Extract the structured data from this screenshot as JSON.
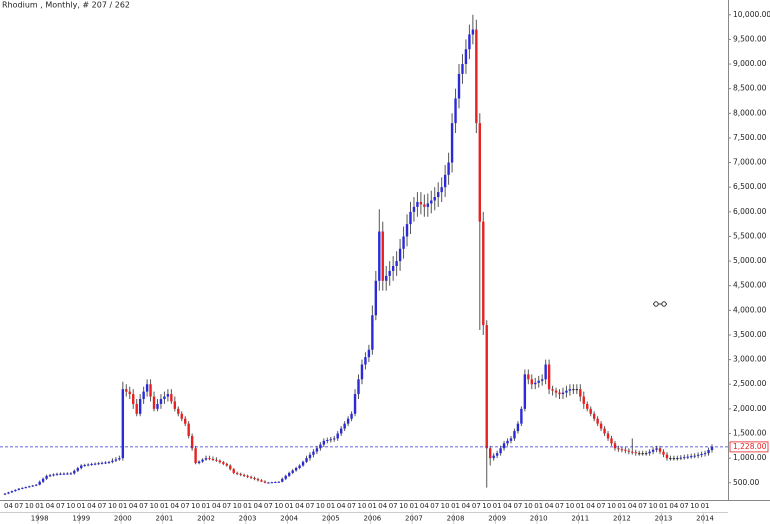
{
  "chart_data": {
    "type": "candlestick",
    "title": "Rhodium , Monthly, # 207 / 262",
    "up_color": "#2a2ad8",
    "down_color": "#e82020",
    "wick_color": "#555555",
    "ylim": [
      150,
      10300
    ],
    "yticks": [
      {
        "value": 500,
        "label": "500.00"
      },
      {
        "value": 1000,
        "label": "1,000.00"
      },
      {
        "value": 1500,
        "label": "1,500.00"
      },
      {
        "value": 2000,
        "label": "2,000.00"
      },
      {
        "value": 2500,
        "label": "2,500.00"
      },
      {
        "value": 3000,
        "label": "3,000.00"
      },
      {
        "value": 3500,
        "label": "3,500.00"
      },
      {
        "value": 4000,
        "label": "4,000.00"
      },
      {
        "value": 4500,
        "label": "4,500.00"
      },
      {
        "value": 5000,
        "label": "5,000.00"
      },
      {
        "value": 5500,
        "label": "5,500.00"
      },
      {
        "value": 6000,
        "label": "6,000.00"
      },
      {
        "value": 6500,
        "label": "6,500.00"
      },
      {
        "value": 7000,
        "label": "7,000.00"
      },
      {
        "value": 7500,
        "label": "7,500.00"
      },
      {
        "value": 8000,
        "label": "8,000.00"
      },
      {
        "value": 8500,
        "label": "8,500.00"
      },
      {
        "value": 9000,
        "label": "9,000.00"
      },
      {
        "value": 9500,
        "label": "9,500.00"
      },
      {
        "value": 10000,
        "label": "10,000.00"
      }
    ],
    "last_price": {
      "value": 1228,
      "label": "1,228.00"
    },
    "years": [
      "1998",
      "1999",
      "2000",
      "2001",
      "2002",
      "2003",
      "2004",
      "2005",
      "2006",
      "2007",
      "2008",
      "2009",
      "2010",
      "2011",
      "2012",
      "2013",
      "2014"
    ],
    "categories": [
      null,
      "04",
      null,
      null,
      "07",
      null,
      null,
      "10",
      null,
      null,
      "01",
      null,
      null,
      "04",
      null,
      null,
      "07",
      null,
      null,
      "10",
      null,
      null,
      "01",
      null,
      null,
      "04",
      null,
      null,
      "07",
      null,
      null,
      "10",
      null,
      null,
      "01",
      null,
      null,
      "04",
      null,
      null,
      "07",
      null,
      null,
      "10",
      null,
      null,
      "01",
      null,
      null,
      "04",
      null,
      null,
      "07",
      null,
      null,
      "10",
      null,
      null,
      "01",
      null,
      null,
      "04",
      null,
      null,
      "07",
      null,
      null,
      "10",
      null,
      null,
      "01",
      null,
      null,
      "04",
      null,
      null,
      "07",
      null,
      null,
      "10",
      null,
      null,
      "01",
      null,
      null,
      "04",
      null,
      null,
      "07",
      null,
      null,
      "10",
      null,
      null,
      "01",
      null,
      null,
      "04",
      null,
      null,
      "07",
      null,
      null,
      "10",
      null,
      null,
      "01",
      null,
      null,
      "04",
      null,
      null,
      "07",
      null,
      null,
      "10",
      null,
      null,
      "01",
      null,
      null,
      "04",
      null,
      null,
      "07",
      null,
      null,
      "10",
      null,
      null,
      "01",
      null,
      null,
      "04",
      null,
      null,
      "07",
      null,
      null,
      "10",
      null,
      null,
      "01",
      null,
      null,
      "04",
      null,
      null,
      "07",
      null,
      null,
      "10",
      null,
      null,
      "01",
      null,
      null,
      "04",
      null,
      null,
      "07",
      null,
      null,
      "10",
      null,
      null,
      "01",
      null,
      null,
      "04",
      null,
      null,
      "07",
      null,
      null,
      "10",
      null,
      null,
      "01",
      null,
      null,
      "04",
      null,
      null,
      "07",
      null,
      null,
      "10",
      null,
      null,
      "01",
      null,
      null,
      "04",
      null,
      null,
      "07",
      null,
      null,
      "10",
      null,
      null,
      "01",
      null,
      null
    ],
    "ohlc": [
      [
        260,
        292,
        248,
        280
      ],
      [
        280,
        317,
        268,
        305
      ],
      [
        305,
        342,
        293,
        330
      ],
      [
        330,
        367,
        318,
        355
      ],
      [
        355,
        392,
        343,
        380
      ],
      [
        380,
        408,
        368,
        396
      ],
      [
        396,
        424,
        384,
        412
      ],
      [
        412,
        440,
        400,
        428
      ],
      [
        428,
        456,
        416,
        444
      ],
      [
        444,
        472,
        432,
        460
      ],
      [
        460,
        545,
        448,
        520
      ],
      [
        520,
        605,
        495,
        580
      ],
      [
        580,
        665,
        555,
        640
      ],
      [
        640,
        678,
        615,
        653
      ],
      [
        653,
        692,
        628,
        667
      ],
      [
        667,
        705,
        642,
        680
      ],
      [
        680,
        708,
        655,
        683
      ],
      [
        683,
        710,
        658,
        685
      ],
      [
        685,
        713,
        660,
        688
      ],
      [
        688,
        715,
        663,
        690
      ],
      [
        690,
        768,
        665,
        743
      ],
      [
        743,
        822,
        718,
        797
      ],
      [
        797,
        875,
        772,
        850
      ],
      [
        850,
        885,
        825,
        860
      ],
      [
        860,
        895,
        835,
        870
      ],
      [
        870,
        905,
        845,
        880
      ],
      [
        880,
        913,
        855,
        888
      ],
      [
        888,
        921,
        863,
        896
      ],
      [
        896,
        929,
        871,
        904
      ],
      [
        904,
        937,
        879,
        912
      ],
      [
        912,
        945,
        887,
        920
      ],
      [
        920,
        997,
        895,
        947
      ],
      [
        947,
        1023,
        922,
        973
      ],
      [
        973,
        1050,
        948,
        1000
      ],
      [
        1000,
        2550,
        950,
        2400
      ],
      [
        2400,
        2500,
        2250,
        2350
      ],
      [
        2350,
        2450,
        2200,
        2300
      ],
      [
        2300,
        2400,
        2000,
        2100
      ],
      [
        2100,
        2200,
        1850,
        1900
      ],
      [
        1900,
        2300,
        1850,
        2200
      ],
      [
        2200,
        2450,
        2100,
        2350
      ],
      [
        2350,
        2600,
        2250,
        2500
      ],
      [
        2500,
        2600,
        2150,
        2250
      ],
      [
        2250,
        2350,
        1950,
        2000
      ],
      [
        2000,
        2200,
        1950,
        2100
      ],
      [
        2100,
        2300,
        2000,
        2200
      ],
      [
        2200,
        2350,
        2100,
        2250
      ],
      [
        2250,
        2400,
        2150,
        2300
      ],
      [
        2300,
        2400,
        2100,
        2150
      ],
      [
        2150,
        2250,
        1950,
        2000
      ],
      [
        2000,
        2050,
        1850,
        1900
      ],
      [
        1900,
        1950,
        1750,
        1800
      ],
      [
        1800,
        1850,
        1650,
        1700
      ],
      [
        1700,
        1750,
        1400,
        1450
      ],
      [
        1450,
        1500,
        1150,
        1200
      ],
      [
        1200,
        1250,
        875,
        900
      ],
      [
        900,
        955,
        875,
        930
      ],
      [
        930,
        995,
        905,
        970
      ],
      [
        970,
        1050,
        945,
        1000
      ],
      [
        1000,
        1050,
        958,
        983
      ],
      [
        983,
        1033,
        942,
        967
      ],
      [
        967,
        1017,
        925,
        950
      ],
      [
        950,
        975,
        892,
        917
      ],
      [
        917,
        942,
        858,
        883
      ],
      [
        883,
        908,
        825,
        850
      ],
      [
        850,
        875,
        750,
        775
      ],
      [
        775,
        800,
        675,
        700
      ],
      [
        700,
        725,
        655,
        680
      ],
      [
        680,
        705,
        635,
        660
      ],
      [
        660,
        685,
        615,
        640
      ],
      [
        640,
        665,
        595,
        620
      ],
      [
        620,
        645,
        575,
        600
      ],
      [
        600,
        625,
        550,
        575
      ],
      [
        575,
        600,
        525,
        550
      ],
      [
        550,
        575,
        513,
        525
      ],
      [
        525,
        550,
        488,
        500
      ],
      [
        500,
        517,
        488,
        505
      ],
      [
        505,
        522,
        493,
        510
      ],
      [
        510,
        527,
        498,
        515
      ],
      [
        515,
        532,
        503,
        520
      ],
      [
        520,
        605,
        508,
        580
      ],
      [
        580,
        665,
        555,
        640
      ],
      [
        640,
        725,
        615,
        700
      ],
      [
        700,
        775,
        675,
        750
      ],
      [
        750,
        825,
        725,
        800
      ],
      [
        800,
        875,
        775,
        850
      ],
      [
        850,
        950,
        825,
        925
      ],
      [
        925,
        1050,
        900,
        1000
      ],
      [
        1000,
        1117,
        950,
        1067
      ],
      [
        1067,
        1183,
        1017,
        1133
      ],
      [
        1133,
        1250,
        1083,
        1200
      ],
      [
        1200,
        1325,
        1150,
        1275
      ],
      [
        1275,
        1400,
        1225,
        1350
      ],
      [
        1350,
        1417,
        1300,
        1367
      ],
      [
        1367,
        1433,
        1317,
        1383
      ],
      [
        1383,
        1450,
        1333,
        1400
      ],
      [
        1400,
        1550,
        1350,
        1500
      ],
      [
        1500,
        1650,
        1450,
        1600
      ],
      [
        1600,
        1750,
        1550,
        1700
      ],
      [
        1700,
        1850,
        1650,
        1800
      ],
      [
        1800,
        1950,
        1750,
        1900
      ],
      [
        1900,
        2400,
        1850,
        2300
      ],
      [
        2300,
        2700,
        2200,
        2600
      ],
      [
        2600,
        3000,
        2500,
        2900
      ],
      [
        2900,
        3150,
        2800,
        3050
      ],
      [
        3050,
        3300,
        2950,
        3200
      ],
      [
        3200,
        4100,
        3100,
        3900
      ],
      [
        3900,
        4800,
        3800,
        4600
      ],
      [
        4600,
        6050,
        4400,
        5600
      ],
      [
        5600,
        5800,
        4400,
        4600
      ],
      [
        4600,
        4900,
        4400,
        4700
      ],
      [
        4700,
        5000,
        4500,
        4800
      ],
      [
        4800,
        5100,
        4600,
        4900
      ],
      [
        4900,
        5200,
        4700,
        5000
      ],
      [
        5000,
        5450,
        4800,
        5250
      ],
      [
        5250,
        5700,
        5050,
        5500
      ],
      [
        5500,
        5950,
        5300,
        5750
      ],
      [
        5750,
        6200,
        5550,
        6000
      ],
      [
        6000,
        6300,
        5800,
        6100
      ],
      [
        6100,
        6400,
        5900,
        6200
      ],
      [
        6200,
        6400,
        5950,
        6150
      ],
      [
        6150,
        6350,
        5900,
        6100
      ],
      [
        6100,
        6370,
        5900,
        6170
      ],
      [
        6170,
        6430,
        5970,
        6230
      ],
      [
        6230,
        6500,
        6030,
        6300
      ],
      [
        6300,
        6600,
        6100,
        6400
      ],
      [
        6400,
        6700,
        6200,
        6500
      ],
      [
        6500,
        6950,
        6300,
        6750
      ],
      [
        6750,
        7200,
        6550,
        7000
      ],
      [
        7000,
        8000,
        6800,
        7800
      ],
      [
        7800,
        8500,
        7600,
        8300
      ],
      [
        8300,
        9000,
        8100,
        8800
      ],
      [
        8800,
        9200,
        8600,
        9000
      ],
      [
        9000,
        9500,
        8800,
        9300
      ],
      [
        9300,
        9800,
        9100,
        9600
      ],
      [
        9600,
        10000,
        9400,
        9700
      ],
      [
        9700,
        9900,
        7600,
        7800
      ],
      [
        7800,
        8000,
        3600,
        5800
      ],
      [
        5800,
        6000,
        3500,
        3700
      ],
      [
        3700,
        3800,
        400,
        1200
      ],
      [
        1200,
        1250,
        850,
        1000
      ],
      [
        1000,
        1100,
        950,
        1050
      ],
      [
        1050,
        1150,
        1000,
        1100
      ],
      [
        1100,
        1250,
        1050,
        1200
      ],
      [
        1200,
        1350,
        1150,
        1300
      ],
      [
        1300,
        1400,
        1250,
        1350
      ],
      [
        1350,
        1450,
        1300,
        1400
      ],
      [
        1400,
        1600,
        1350,
        1550
      ],
      [
        1550,
        1750,
        1500,
        1700
      ],
      [
        1700,
        2050,
        1650,
        2000
      ],
      [
        2000,
        2800,
        1950,
        2700
      ],
      [
        2700,
        2800,
        2500,
        2600
      ],
      [
        2600,
        2700,
        2400,
        2500
      ],
      [
        2500,
        2630,
        2400,
        2530
      ],
      [
        2530,
        2670,
        2430,
        2570
      ],
      [
        2570,
        2700,
        2470,
        2600
      ],
      [
        2600,
        3000,
        2500,
        2900
      ],
      [
        2900,
        3000,
        2300,
        2400
      ],
      [
        2400,
        2470,
        2270,
        2370
      ],
      [
        2370,
        2430,
        2230,
        2330
      ],
      [
        2330,
        2400,
        2200,
        2300
      ],
      [
        2300,
        2430,
        2200,
        2330
      ],
      [
        2330,
        2470,
        2230,
        2370
      ],
      [
        2370,
        2500,
        2270,
        2400
      ],
      [
        2400,
        2500,
        2300,
        2400
      ],
      [
        2400,
        2500,
        2300,
        2400
      ],
      [
        2400,
        2500,
        2150,
        2250
      ],
      [
        2250,
        2350,
        2000,
        2100
      ],
      [
        2100,
        2150,
        1950,
        2000
      ],
      [
        2000,
        2050,
        1850,
        1900
      ],
      [
        1900,
        1950,
        1750,
        1800
      ],
      [
        1800,
        1850,
        1650,
        1700
      ],
      [
        1700,
        1750,
        1550,
        1600
      ],
      [
        1600,
        1650,
        1450,
        1500
      ],
      [
        1500,
        1550,
        1350,
        1400
      ],
      [
        1400,
        1450,
        1250,
        1300
      ],
      [
        1300,
        1350,
        1150,
        1200
      ],
      [
        1200,
        1250,
        1130,
        1180
      ],
      [
        1180,
        1230,
        1120,
        1170
      ],
      [
        1170,
        1220,
        1100,
        1150
      ],
      [
        1150,
        1200,
        1080,
        1130
      ],
      [
        1130,
        1400,
        1070,
        1120
      ],
      [
        1120,
        1170,
        1050,
        1100
      ],
      [
        1100,
        1150,
        1050,
        1100
      ],
      [
        1100,
        1150,
        1050,
        1100
      ],
      [
        1100,
        1150,
        1050,
        1100
      ],
      [
        1100,
        1180,
        1050,
        1130
      ],
      [
        1130,
        1220,
        1080,
        1170
      ],
      [
        1170,
        1250,
        1120,
        1200
      ],
      [
        1200,
        1250,
        1080,
        1130
      ],
      [
        1130,
        1180,
        1020,
        1070
      ],
      [
        1070,
        1120,
        950,
        1000
      ],
      [
        1000,
        1050,
        950,
        1000
      ],
      [
        1000,
        1050,
        950,
        1000
      ],
      [
        1000,
        1050,
        950,
        1000
      ],
      [
        1000,
        1060,
        960,
        1010
      ],
      [
        1010,
        1070,
        970,
        1020
      ],
      [
        1020,
        1080,
        980,
        1030
      ],
      [
        1030,
        1090,
        990,
        1040
      ],
      [
        1040,
        1100,
        1000,
        1050
      ],
      [
        1050,
        1117,
        1000,
        1067
      ],
      [
        1067,
        1133,
        1017,
        1083
      ],
      [
        1083,
        1150,
        1033,
        1100
      ],
      [
        1100,
        1214,
        1050,
        1164
      ],
      [
        1164,
        1278,
        1114,
        1228
      ]
    ]
  }
}
